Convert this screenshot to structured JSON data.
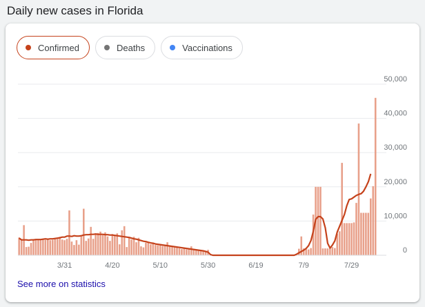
{
  "page": {
    "title": "Daily new cases in Florida"
  },
  "chips": [
    {
      "label": "Confirmed",
      "color": "#c5421b",
      "active": true
    },
    {
      "label": "Deaths",
      "color": "#757575",
      "active": false
    },
    {
      "label": "Vaccinations",
      "color": "#4285f4",
      "active": false
    }
  ],
  "footer": {
    "link_label": "See more on statistics"
  },
  "chart_data": {
    "type": "bar",
    "x_tick_labels": [
      "3/31",
      "4/20",
      "5/10",
      "5/30",
      "6/19",
      "7/9",
      "7/29"
    ],
    "x_tick_days": [
      19,
      39,
      59,
      79,
      99,
      119,
      139
    ],
    "y_tick_labels": [
      "0",
      "10,000",
      "20,000",
      "30,000",
      "40,000",
      "50,000"
    ],
    "ylim": [
      0,
      50000
    ],
    "grid": true,
    "bar_color": "#e8a08a",
    "line_color": "#c5421b",
    "series": [
      {
        "values": [
          5200,
          4400,
          8800,
          2400,
          2500,
          3600,
          4700,
          4600,
          4500,
          4600,
          4800,
          4500,
          4700,
          4400,
          4500,
          5000,
          4800,
          5400,
          4600,
          4400,
          4800,
          13100,
          4000,
          3000,
          4400,
          3100,
          5500,
          13600,
          4200,
          4900,
          8300,
          4800,
          6400,
          6500,
          6900,
          5900,
          6700,
          5500,
          4200,
          6200,
          6000,
          6400,
          3200,
          7300,
          8500,
          2400,
          5400,
          4600,
          5400,
          3800,
          5100,
          2600,
          2300,
          3700,
          3800,
          3200,
          3700,
          3000,
          2900,
          3100,
          2700,
          3100,
          3800,
          2700,
          2500,
          2400,
          2200,
          2000,
          1800,
          2000,
          1700,
          1800,
          2600,
          1600,
          1500,
          1400,
          1300,
          1200,
          1000,
          1600,
          0,
          0,
          0,
          0,
          0,
          0,
          0,
          0,
          0,
          0,
          0,
          0,
          0,
          0,
          0,
          0,
          0,
          0,
          0,
          0,
          0,
          0,
          0,
          0,
          0,
          0,
          0,
          0,
          0,
          0,
          0,
          0,
          0,
          0,
          0,
          0,
          0,
          1900,
          5500,
          2000,
          1800,
          1700,
          2100,
          11900,
          20000,
          20000,
          20000,
          2000,
          2000,
          2000,
          2000,
          2400,
          2100,
          6300,
          7000,
          27000,
          9400,
          9400,
          9400,
          9400,
          9600,
          15300,
          38500,
          12400,
          12400,
          12400,
          12400,
          16600,
          20200,
          46000
        ],
        "average": [
          5000,
          4500,
          4500,
          4500,
          4400,
          4500,
          4500,
          4600,
          4600,
          4600,
          4700,
          4800,
          4700,
          4800,
          4800,
          4900,
          5000,
          5100,
          5300,
          5300,
          5600,
          5600,
          5500,
          5700,
          5600,
          5600,
          5700,
          5900,
          6000,
          6000,
          6100,
          6100,
          6200,
          6100,
          6100,
          6100,
          6000,
          6000,
          5900,
          5900,
          5800,
          5700,
          5600,
          5500,
          5400,
          5300,
          5200,
          5000,
          4800,
          4700,
          4500,
          4300,
          4100,
          4000,
          3800,
          3600,
          3500,
          3300,
          3200,
          3100,
          3000,
          2900,
          2800,
          2700,
          2600,
          2500,
          2400,
          2300,
          2200,
          2100,
          2000,
          1900,
          1800,
          1700,
          1600,
          1500,
          1400,
          1300,
          1100,
          900,
          200,
          0,
          0,
          0,
          0,
          0,
          0,
          0,
          0,
          0,
          0,
          0,
          0,
          0,
          0,
          0,
          0,
          0,
          0,
          0,
          0,
          0,
          0,
          0,
          0,
          0,
          0,
          0,
          0,
          0,
          0,
          0,
          0,
          0,
          0,
          0,
          300,
          700,
          1100,
          1500,
          2000,
          2800,
          4300,
          7000,
          10500,
          11300,
          11300,
          10600,
          8000,
          3500,
          2100,
          3000,
          4200,
          6800,
          8500,
          10200,
          11900,
          14500,
          16300,
          16500,
          17000,
          17500,
          17800,
          18000,
          18700,
          20000,
          21500,
          23800
        ]
      }
    ]
  }
}
